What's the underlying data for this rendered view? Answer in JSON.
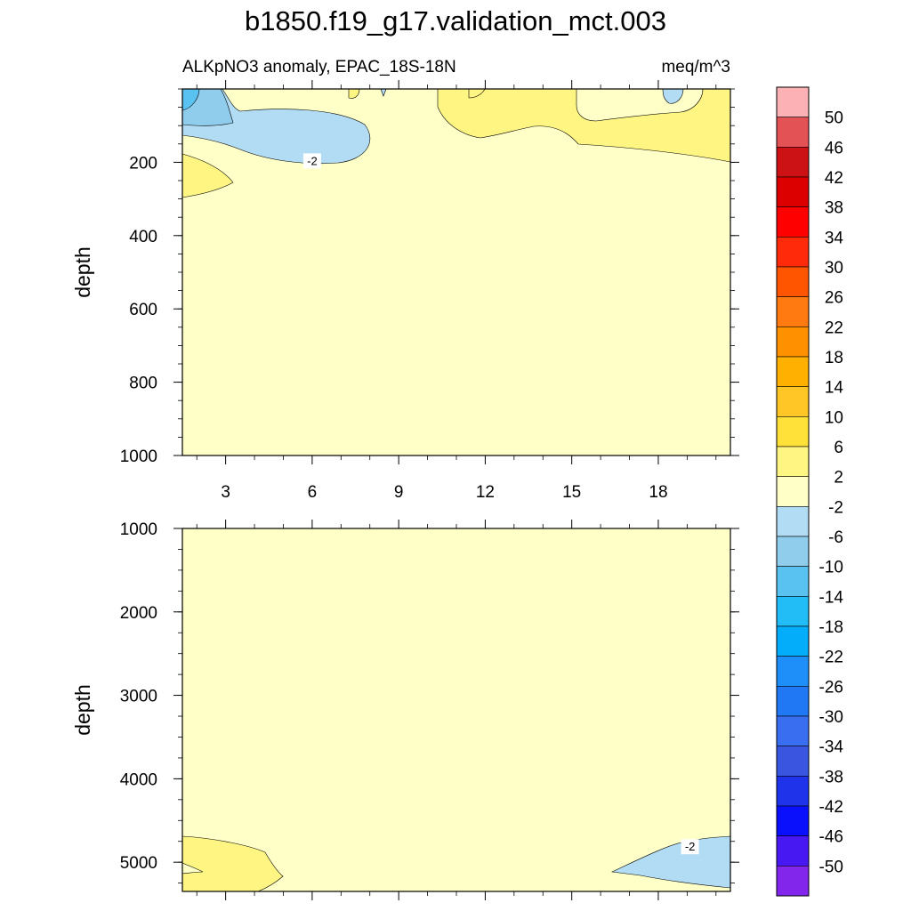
{
  "title": "b1850.f19_g17.validation_mct.003",
  "chart_data": {
    "type": "contour",
    "title": "b1850.f19_g17.validation_mct.003",
    "subtitle_left": "ALKpNO3 anomaly, EPAC_18S-18N",
    "subtitle_right": "meq/m^3",
    "ylabel": "depth",
    "x_ticks": [
      "3",
      "6",
      "9",
      "12",
      "15",
      "18"
    ],
    "x_tick_values": [
      3,
      6,
      9,
      12,
      15,
      18
    ],
    "xlim": [
      1.5,
      20.5
    ],
    "panels": [
      {
        "ylim": [
          0,
          1000
        ],
        "y_ticks": [
          "200",
          "400",
          "600",
          "800",
          "1000"
        ],
        "y_tick_values": [
          200,
          400,
          600,
          800,
          1000
        ],
        "contour_labels": [
          {
            "text": "-2",
            "x": 6,
            "y": 200
          }
        ]
      },
      {
        "ylim": [
          1000,
          5350
        ],
        "y_ticks": [
          "1000",
          "2000",
          "3000",
          "4000",
          "5000"
        ],
        "y_tick_values": [
          1000,
          2000,
          3000,
          4000,
          5000
        ],
        "contour_labels": [
          {
            "text": "-2",
            "x": 19.1,
            "y": 4830
          }
        ]
      }
    ],
    "colorbar": {
      "labels": [
        "50",
        "46",
        "42",
        "38",
        "34",
        "30",
        "26",
        "22",
        "18",
        "14",
        "10",
        "6",
        "2",
        "-2",
        "-6",
        "-10",
        "-14",
        "-18",
        "-22",
        "-26",
        "-30",
        "-34",
        "-38",
        "-42",
        "-46",
        "-50"
      ],
      "colors": [
        "#fcb2b4",
        "#e35255",
        "#cc1214",
        "#dd0000",
        "#ff0000",
        "#ff2a0a",
        "#ff5500",
        "#ff7a10",
        "#ff9100",
        "#ffb000",
        "#ffc625",
        "#ffe139",
        "#fff583",
        "#ffffc8",
        "#b2dcf4",
        "#90cdec",
        "#59c2f1",
        "#22bcf7",
        "#03adfa",
        "#1e8ff8",
        "#2078f4",
        "#3a6ef0",
        "#3a56e0",
        "#1e33ea",
        "#0a10fb",
        "#4718f2",
        "#8326ec"
      ]
    }
  }
}
